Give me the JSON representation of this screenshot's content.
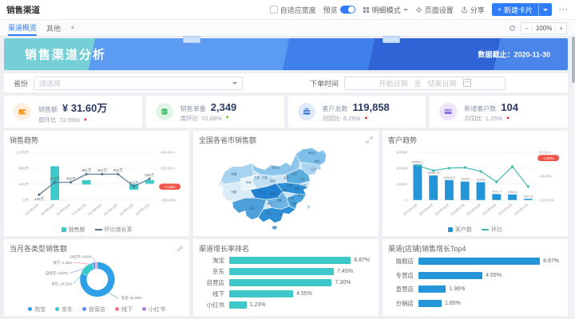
{
  "app": {
    "title": "销售渠道",
    "toolbar": {
      "fit_width": "自适应宽度",
      "preview": "预览",
      "detail_mode": "明细模式",
      "settings": "页面设置",
      "share": "分享",
      "new_card": "新建卡片",
      "more": "···"
    },
    "tabs": [
      {
        "label": "渠道概览"
      },
      {
        "label": "其他"
      }
    ],
    "tab_add": "+",
    "view_controls": {
      "zoom_out": "−",
      "zoom_value": "100%",
      "zoom_in": "+"
    }
  },
  "banner": {
    "title": "销售渠道分析",
    "data_deadline": "数据截止：2020-11-30"
  },
  "filters": {
    "province_label": "省份",
    "province_placeholder": "请选择",
    "date_label": "下单时间",
    "date_start": "开始日期",
    "date_sep": "至",
    "date_end": "结束日期"
  },
  "kpis": [
    {
      "label": "销售额",
      "value": "¥ 31.60万",
      "sub_label": "周环比",
      "sub_value": "72.59%",
      "trend": "▲"
    },
    {
      "label": "销售单量",
      "value": "2,349",
      "sub_label": "周环比",
      "sub_value": "72.08%",
      "trend": "▼"
    },
    {
      "label": "客户总数",
      "value": "119,858",
      "sub_label": "月同比",
      "sub_value": "6.25%",
      "trend": "▲"
    },
    {
      "label": "新增客户数",
      "value": "104",
      "sub_label": "月同比",
      "sub_value": "1.25%",
      "trend": "▲"
    }
  ],
  "chart_data": [
    {
      "id": "sales-trend",
      "type": "bar+line",
      "title": "销售趋势",
      "categories": [
        "2020年04月",
        "2020年05月",
        "2020年06月",
        "2020年07月",
        "2020年08月",
        "2020年09月",
        "2020年10月",
        "2020年11月"
      ],
      "series": [
        {
          "name": "销售额",
          "type": "bar",
          "unit": "万",
          "segments": [
            {
              "month_index": 1,
              "from": 0,
              "to": 850
            },
            {
              "month_index": 3,
              "from": 390,
              "to": 500
            },
            {
              "month_index": 6,
              "from": 260,
              "to": 400
            },
            {
              "month_index": 7,
              "from": 410,
              "to": 500
            }
          ]
        },
        {
          "name": "环比增长率",
          "type": "line",
          "unit": "万",
          "values": [
            134,
            443,
            446,
            651,
            651,
            652,
            341,
            535
          ],
          "labels": [
            "134万",
            "443万",
            "446万",
            "651万",
            "651万",
            "652万",
            "341万",
            "535万"
          ]
        }
      ],
      "y_left": {
        "ticks": [
          "1,200万",
          "800万",
          "400万",
          "0万"
        ],
        "max": 1200,
        "min": 0
      },
      "y_right": {
        "ticks": [
          "400.00%",
          "200.00%",
          "",
          "-200.00%"
        ],
        "badge": "-0.09%",
        "badge_frac": 0.72
      },
      "legend": [
        "销售额",
        "环比增长率"
      ],
      "colors": {
        "bar": "#3ec8ca",
        "line": "#52748b"
      }
    },
    {
      "id": "region-sales-map",
      "type": "map",
      "title": "全国各省市销售额",
      "regions": [
        "新疆",
        "西藏",
        "青海",
        "甘肃",
        "内蒙古",
        "黑龙江",
        "吉林",
        "辽宁",
        "河北",
        "山西",
        "山东",
        "陕西",
        "宁夏",
        "河南",
        "江苏",
        "安徽",
        "湖北",
        "四川",
        "重庆",
        "湖南",
        "江西",
        "浙江",
        "贵州",
        "云南",
        "广西",
        "广东",
        "福建",
        "海南"
      ]
    },
    {
      "id": "customer-trend",
      "type": "bar+line",
      "title": "客户趋势",
      "categories": [
        "2020年04月",
        "2020年05月",
        "2020年06月",
        "2020年07月",
        "2020年08月",
        "2020年09月",
        "2020年10月",
        "2020年11月"
      ],
      "series": [
        {
          "name": "客户数",
          "type": "bar",
          "values": [
            44566.1,
            30900.5,
            25112.5,
            23244,
            22435,
            7471.7,
            7000.5,
            1514.8
          ],
          "labels": [
            "44566.1",
            "30900.5",
            "25112.5",
            "23244",
            "22435",
            "7471.7",
            "7000.5",
            "1514.8"
          ]
        },
        {
          "name": "环比",
          "type": "line",
          "unit": "%",
          "values": [
            -5,
            -21,
            -13,
            -11,
            -24,
            -59,
            -8,
            -75
          ]
        }
      ],
      "y_left": {
        "ticks": [
          "60000",
          "40000",
          "20000",
          "0"
        ],
        "max": 60000,
        "min": 0
      },
      "y_right": {
        "ticks": [
          "40.00%",
          "-40.00%",
          "-120.00%"
        ],
        "max": 40,
        "min": -120,
        "badge": "-0.00%",
        "badge_frac": 0.12
      },
      "legend": [
        "客户数",
        "环比"
      ],
      "colors": {
        "bar": "#2496d8",
        "line": "#3bbcae"
      }
    },
    {
      "id": "type-sales-donut",
      "type": "pie",
      "title": "当月各类型销售额",
      "slices": [
        {
          "name": "淘宝",
          "pct": 81.08,
          "label": "淘宝: 81.08%",
          "color": "#2da0e8"
        },
        {
          "name": "京东",
          "pct": 14.12,
          "label": "京东: 14.12%",
          "color": "#3ec8ca"
        },
        {
          "name": "自营店",
          "pct": 2.53,
          "label": "自营店: 2.53%",
          "color": "#5b8ff9"
        },
        {
          "name": "线下",
          "pct": 1.44,
          "label": "线下: 1.44%",
          "color": "#f5788a"
        },
        {
          "name": "小红书",
          "pct": 0.83,
          "label": "小红书: 0.83%",
          "color": "#b77fe0"
        }
      ],
      "legend": [
        "淘宝",
        "京东",
        "自营店",
        "线下",
        "小红书"
      ]
    },
    {
      "id": "growth-rank",
      "type": "hbar",
      "title": "渠道增长率排名",
      "categories": [
        "淘宝",
        "京东",
        "自营店",
        "线下",
        "小红书"
      ],
      "values": [
        8.87,
        7.45,
        7.3,
        4.55,
        1.23
      ],
      "labels": [
        "8.87%",
        "7.45%",
        "7.30%",
        "4.55%",
        "1.23%"
      ],
      "color": "#3ec8ca",
      "xmax": 10
    },
    {
      "id": "shop-top4",
      "type": "hbar",
      "title": "渠道(店铺)销售增长Top4",
      "categories": [
        "旗舰店",
        "专营店",
        "直营店",
        "分销店"
      ],
      "values": [
        8.87,
        4.55,
        1.96,
        1.65
      ],
      "labels": [
        "8.87%",
        "4.55%",
        "1.96%",
        "1.65%"
      ],
      "color": "#2496d8",
      "xmax": 10
    }
  ]
}
